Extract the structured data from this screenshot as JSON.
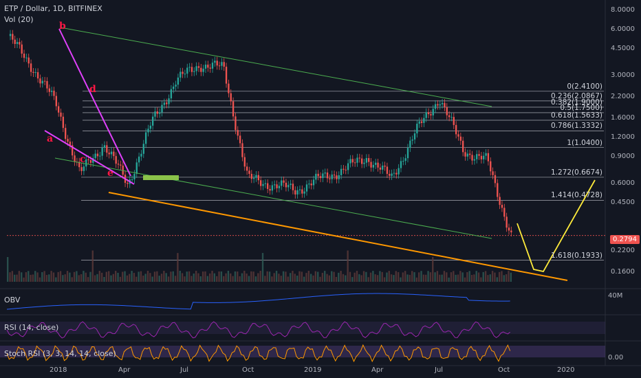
{
  "header": {
    "symbol_line": "ETP / Dollar, 1D, BITFINEX",
    "volume_label": "Vol (20)"
  },
  "panes": {
    "obv_label": "OBV",
    "rsi_label": "RSI (14, close)",
    "stoch_label": "Stoch RSI (3, 3, 14, 14, close)"
  },
  "annotations": {
    "wave_labels": [
      "b",
      "d",
      "a",
      "c",
      "e"
    ]
  },
  "fib_levels": [
    {
      "label": "0(2.4100)",
      "price": 2.41
    },
    {
      "label": "0.236(2.0867)",
      "price": 2.0867
    },
    {
      "label": "0.382(1.9000)",
      "price": 1.9
    },
    {
      "label": "0.5(1.7500)",
      "price": 1.75
    },
    {
      "label": "0.618(1.5633)",
      "price": 1.5633
    },
    {
      "label": "0.786(1.3332)",
      "price": 1.3332
    },
    {
      "label": "1(1.0400)",
      "price": 1.04
    },
    {
      "label": "1.272(0.6674)",
      "price": 0.6674
    },
    {
      "label": "1.414(0.4728)",
      "price": 0.4728
    },
    {
      "label": "1.618(0.1933)",
      "price": 0.1933
    }
  ],
  "price_axis": [
    "8.0000",
    "6.0000",
    "4.5000",
    "3.0000",
    "2.2000",
    "1.6000",
    "1.2000",
    "0.9000",
    "0.6000",
    "0.4500",
    "0.2200",
    "0.1600"
  ],
  "volume_axis": "40M",
  "oscillator_axis": "0.00",
  "last_price": "0.2794",
  "time_axis": [
    "2018",
    "Apr",
    "Jul",
    "Oct",
    "2019",
    "Apr",
    "Jul",
    "Oct",
    "2020"
  ],
  "colors": {
    "background": "#131722",
    "up": "#26a69a",
    "down": "#ef5350",
    "fib_line": "#b2b5be",
    "channel": "#4caf50",
    "support": "#ff9800",
    "wedge": "#e040fb",
    "projection": "#ffeb3b"
  },
  "chart_data": {
    "type": "line",
    "title": "ETP / Dollar, 1D, BITFINEX",
    "y_scale": "log",
    "ylim": [
      0.14,
      8.5
    ],
    "x": [
      "2018-01",
      "2018-02",
      "2018-03",
      "2018-04",
      "2018-05",
      "2018-06",
      "2018-07",
      "2018-08",
      "2018-09",
      "2018-10",
      "2018-11",
      "2018-12",
      "2019-01",
      "2019-02",
      "2019-03",
      "2019-04",
      "2019-05",
      "2019-06",
      "2019-07",
      "2019-08",
      "2019-09",
      "2019-10"
    ],
    "series": [
      {
        "values": [
          5.5,
          3.5,
          2.0,
          0.7,
          1.1,
          0.6,
          1.5,
          2.8,
          3.6,
          3.4,
          0.65,
          0.6,
          0.55,
          0.65,
          0.75,
          0.9,
          0.65,
          1.3,
          2.2,
          1.0,
          0.85,
          0.28
        ]
      }
    ]
  }
}
